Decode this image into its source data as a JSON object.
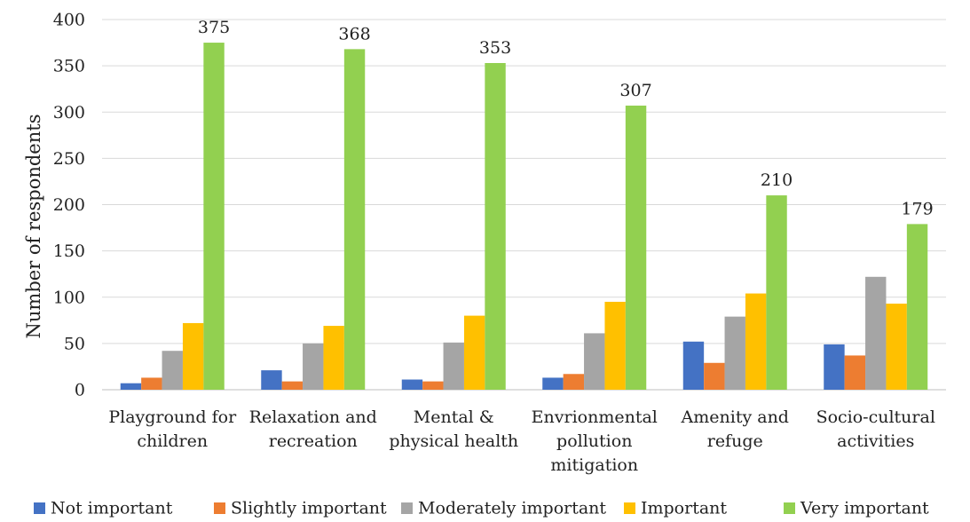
{
  "chart_data": {
    "type": "bar",
    "title": "",
    "xlabel": "",
    "ylabel": "Number of respondents",
    "ylim": [
      0,
      400
    ],
    "yticks": [
      0,
      50,
      100,
      150,
      200,
      250,
      300,
      350,
      400
    ],
    "grid": true,
    "legend": "bottom",
    "categories": [
      [
        "Playground for",
        "children"
      ],
      [
        "Relaxation and",
        "recreation"
      ],
      [
        "Mental &",
        "physical health"
      ],
      [
        "Envrionmental",
        "pollution",
        "mitigation"
      ],
      [
        "Amenity and",
        "refuge"
      ],
      [
        "Socio-cultural",
        "activities"
      ]
    ],
    "series": [
      {
        "name": "Not important",
        "color": "#4472c4",
        "values": [
          7,
          21,
          11,
          13,
          52,
          49
        ]
      },
      {
        "name": "Slightly important",
        "color": "#ed7d31",
        "values": [
          13,
          9,
          9,
          17,
          29,
          37
        ]
      },
      {
        "name": "Moderately important",
        "color": "#a5a5a5",
        "values": [
          42,
          50,
          51,
          61,
          79,
          122
        ]
      },
      {
        "name": "Important",
        "color": "#ffc000",
        "values": [
          72,
          69,
          80,
          95,
          104,
          93
        ]
      },
      {
        "name": "Very important",
        "color": "#92d050",
        "values": [
          375,
          368,
          353,
          307,
          210,
          179
        ]
      }
    ],
    "data_labels": {
      "series": "Very important",
      "values": [
        "375",
        "368",
        "353",
        "307",
        "210",
        "179"
      ]
    }
  }
}
